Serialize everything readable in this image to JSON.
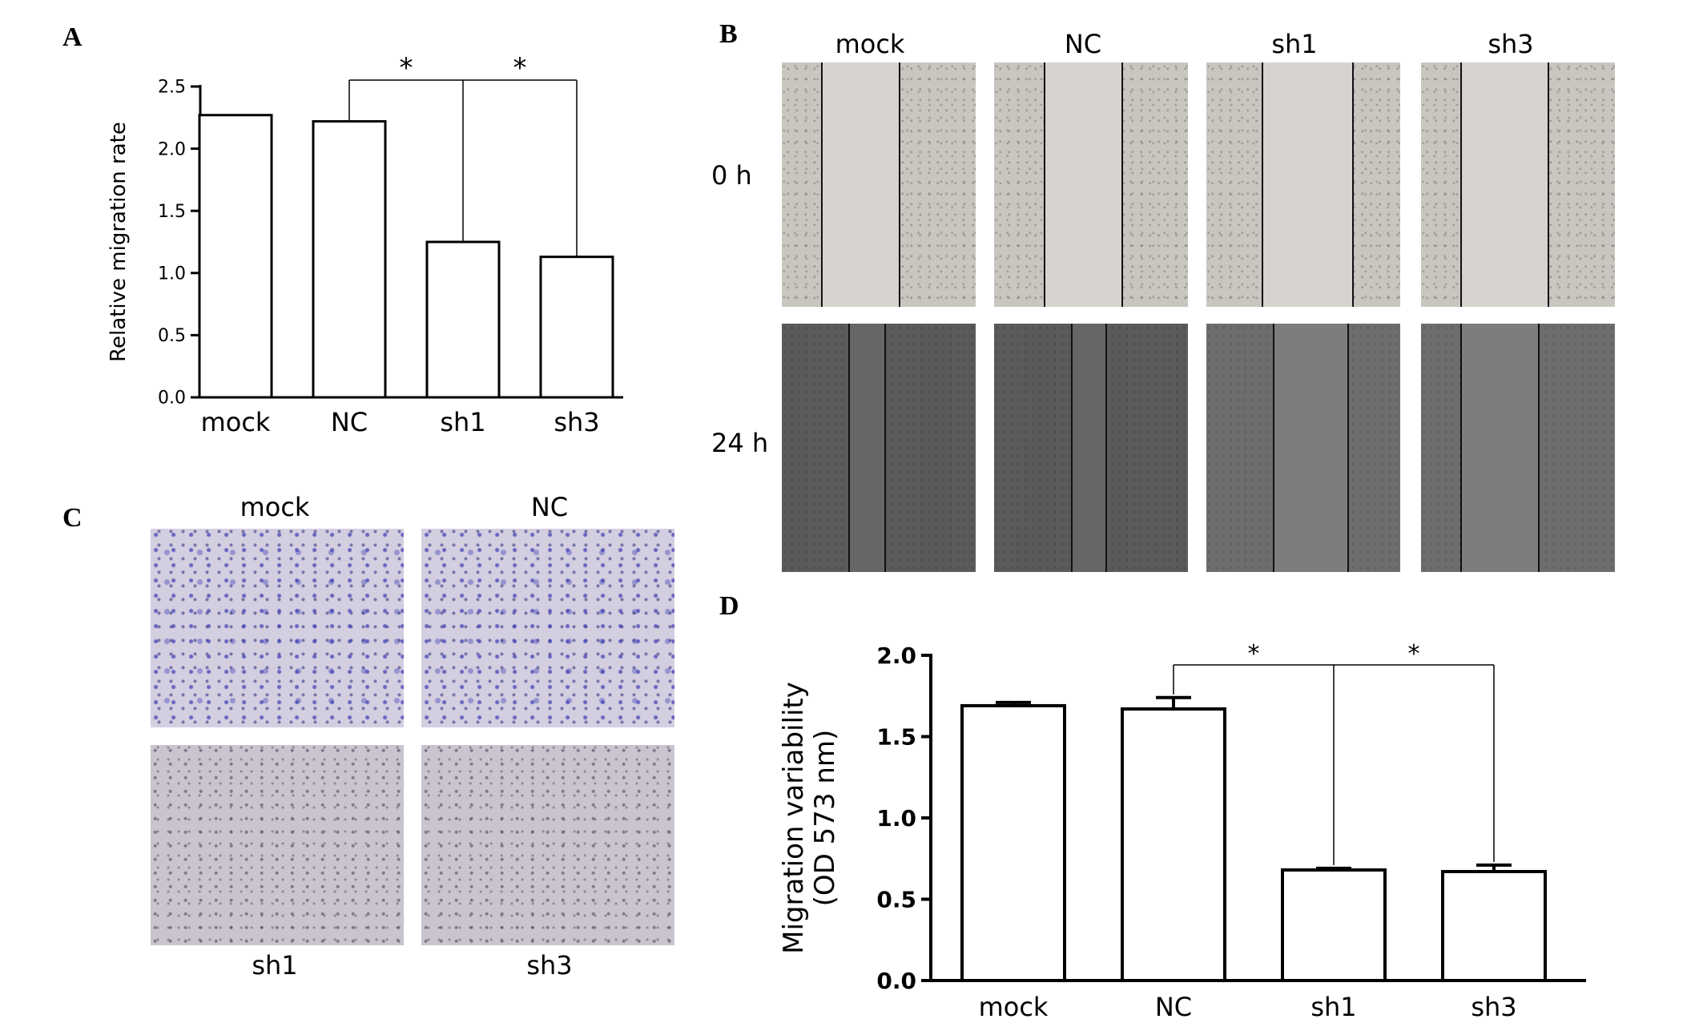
{
  "panels": {
    "A": "A",
    "B": "B",
    "C": "C",
    "D": "D"
  },
  "chart_data": [
    {
      "type": "bar",
      "panel": "A",
      "categories": [
        "mock",
        "NC",
        "sh1",
        "sh3"
      ],
      "values": [
        2.27,
        2.22,
        1.25,
        1.13
      ],
      "ylabel": "Relative migration rate",
      "ylim": [
        0,
        2.5
      ],
      "yticks": [
        "0.0",
        "0.5",
        "1.0",
        "1.5",
        "2.0",
        "2.5"
      ],
      "significance": [
        {
          "from": "NC",
          "to": "sh1",
          "label": "*"
        },
        {
          "from": "NC",
          "to": "sh3",
          "label": "*"
        }
      ]
    },
    {
      "type": "bar",
      "panel": "D",
      "categories": [
        "mock",
        "NC",
        "sh1",
        "sh3"
      ],
      "values": [
        1.69,
        1.67,
        0.68,
        0.67
      ],
      "errors": [
        0.02,
        0.07,
        0.01,
        0.04
      ],
      "ylabel_lines": [
        "Migration variability",
        "(OD 573 nm)"
      ],
      "ylim": [
        0,
        2.0
      ],
      "yticks": [
        "0.0",
        "0.5",
        "1.0",
        "1.5",
        "2.0"
      ],
      "significance": [
        {
          "from": "NC",
          "to": "sh1",
          "label": "*"
        },
        {
          "from": "NC",
          "to": "sh3",
          "label": "*"
        }
      ]
    }
  ],
  "panel_B": {
    "columns": [
      "mock",
      "NC",
      "sh1",
      "sh3"
    ],
    "rows": [
      "0 h",
      "24 h"
    ]
  },
  "panel_C": {
    "top_labels": [
      "mock",
      "NC"
    ],
    "bottom_labels": [
      "sh1",
      "sh3"
    ]
  }
}
